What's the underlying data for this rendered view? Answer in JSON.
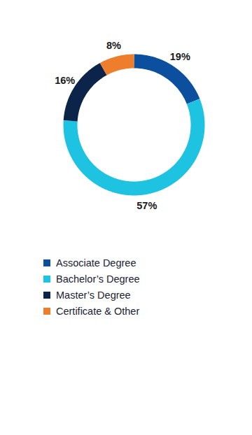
{
  "chart_data": {
    "type": "donut",
    "categories": [
      "Associate Degree",
      "Bachelor’s Degree",
      "Master’s Degree",
      "Certificate & Other"
    ],
    "values": [
      19,
      57,
      16,
      8
    ],
    "value_labels": [
      "19%",
      "57%",
      "16%",
      "8%"
    ],
    "colors": [
      "#0b4f9e",
      "#1fc3e2",
      "#0c2449",
      "#ee7d2c"
    ],
    "data_labels": true,
    "legend": "bottom"
  }
}
